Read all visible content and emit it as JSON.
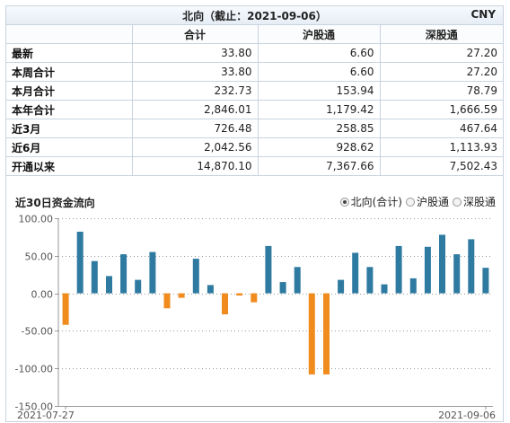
{
  "header": {
    "title": "北向（截止：2021-09-06）",
    "currency": "CNY"
  },
  "columns": [
    "合计",
    "沪股通",
    "深股通"
  ],
  "rows": [
    {
      "label": "最新",
      "values": [
        "33.80",
        "6.60",
        "27.20"
      ]
    },
    {
      "label": "本周合计",
      "values": [
        "33.80",
        "6.60",
        "27.20"
      ]
    },
    {
      "label": "本月合计",
      "values": [
        "232.73",
        "153.94",
        "78.79"
      ]
    },
    {
      "label": "本年合计",
      "values": [
        "2,846.01",
        "1,179.42",
        "1,666.59"
      ]
    },
    {
      "label": "近3月",
      "values": [
        "726.48",
        "258.85",
        "467.64"
      ]
    },
    {
      "label": "近6月",
      "values": [
        "2,042.56",
        "928.62",
        "1,113.93"
      ]
    },
    {
      "label": "开通以来",
      "values": [
        "14,870.10",
        "7,367.66",
        "7,502.43"
      ]
    }
  ],
  "chart_data": {
    "type": "bar",
    "title": "近30日资金流向",
    "legend": [
      "北向(合计)",
      "沪股通",
      "深股通"
    ],
    "selected": "北向(合计)",
    "legend_position": "top-right",
    "ylim": [
      -150,
      100
    ],
    "yticks": [
      "100.00",
      "50.00",
      "0.00",
      "-50.00",
      "-100.00",
      "-150.00"
    ],
    "x_start_label": "2021-07-27",
    "x_end_label": "2021-09-06",
    "values": [
      -42,
      82,
      43,
      23,
      52,
      18,
      55,
      -20,
      -6,
      46,
      11,
      -28,
      -3,
      -12,
      63,
      15,
      35,
      -108,
      -108,
      18,
      54,
      35,
      12,
      63,
      20,
      62,
      78,
      52,
      72,
      34
    ],
    "colors": {
      "positive": "#2e7aa1",
      "negative": "#f08c1e",
      "axis": "#999999",
      "grid": "#999999"
    }
  }
}
